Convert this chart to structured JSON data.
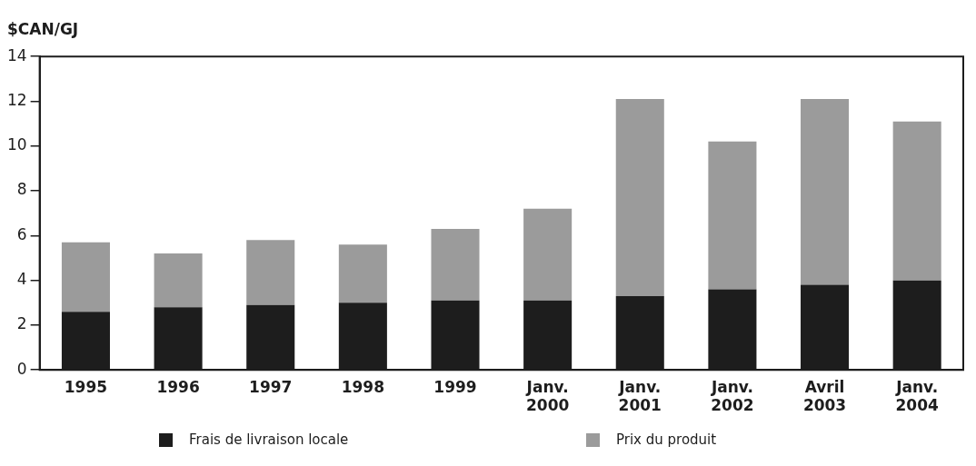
{
  "chart_data": {
    "type": "bar",
    "ylabel": "$CAN/GJ",
    "categories": [
      "1995",
      "1996",
      "1997",
      "1998",
      "1999",
      "Janv.\n2000",
      "Janv.\n2001",
      "Janv.\n2002",
      "Avril\n2003",
      "Janv.\n2004"
    ],
    "series": [
      {
        "name": "Frais de livraison locale",
        "color": "#1d1d1d",
        "values": [
          2.6,
          2.8,
          2.9,
          3.0,
          3.1,
          3.1,
          3.3,
          3.6,
          3.8,
          4.0
        ]
      },
      {
        "name": "Prix du produit",
        "color": "#9b9b9b",
        "values": [
          3.1,
          2.4,
          2.9,
          2.6,
          3.2,
          4.1,
          8.8,
          6.6,
          8.3,
          7.1
        ]
      }
    ],
    "stacked": true,
    "ylim": [
      0,
      14
    ],
    "yticks": [
      0,
      2,
      4,
      6,
      8,
      10,
      12,
      14
    ],
    "grid": false,
    "legend": "bottom"
  }
}
